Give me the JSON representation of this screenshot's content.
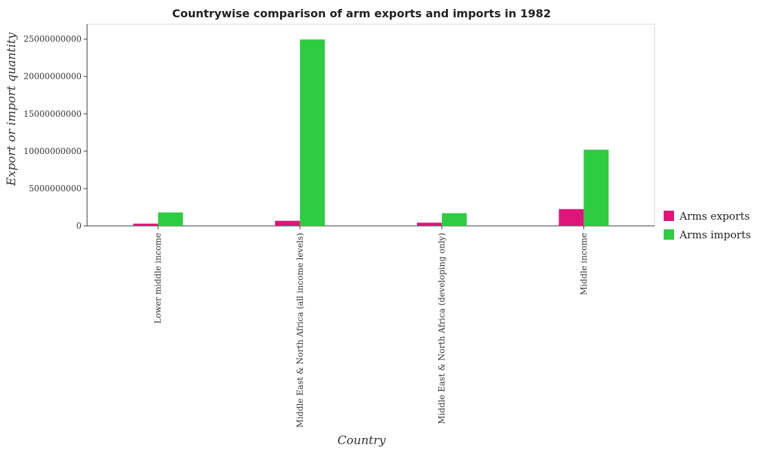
{
  "chart_data": {
    "type": "bar",
    "title": "Countrywise comparison of arm exports and imports in 1982",
    "xlabel": "Country",
    "ylabel": "Export or import quantity",
    "categories": [
      "Lower middle income",
      "Middle East & North Africa (all income levels)",
      "Middle East & North Africa (developing only)",
      "Middle income"
    ],
    "series": [
      {
        "name": "Arms exports",
        "color": "#e0157a",
        "values": [
          300000000,
          680000000,
          430000000,
          2250000000
        ]
      },
      {
        "name": "Arms imports",
        "color": "#2ecc40",
        "values": [
          1800000000,
          24950000000,
          1700000000,
          10200000000
        ]
      }
    ],
    "ylim": [
      0,
      27000000000
    ],
    "yticks": [
      0,
      5000000000,
      10000000000,
      15000000000,
      20000000000,
      25000000000
    ],
    "ytick_labels": [
      "0",
      "5000000000",
      "10000000000",
      "15000000000",
      "20000000000",
      "25000000000"
    ],
    "grid": false,
    "legend_position": "right"
  }
}
